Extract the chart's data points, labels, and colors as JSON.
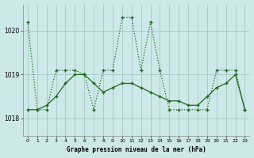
{
  "title": "Graphe pression niveau de la mer (hPa)",
  "bg_color": "#cde8e8",
  "grid_color": "#a8cccc",
  "line_color": "#1a6b1a",
  "xlim": [
    -0.5,
    23.5
  ],
  "ylim": [
    1017.6,
    1020.6
  ],
  "yticks": [
    1018,
    1019,
    1020
  ],
  "xticks": [
    0,
    1,
    2,
    3,
    4,
    5,
    6,
    7,
    8,
    9,
    10,
    11,
    12,
    13,
    14,
    15,
    16,
    17,
    18,
    19,
    20,
    21,
    22,
    23
  ],
  "series_dashed_x": [
    0,
    1,
    2,
    3,
    4,
    5,
    6,
    7,
    8,
    9,
    10,
    11,
    12,
    13,
    14,
    15,
    16,
    17,
    18,
    19,
    20,
    21,
    22,
    23
  ],
  "series_dashed_y": [
    1020.2,
    1018.2,
    1018.2,
    1019.1,
    1019.1,
    1019.1,
    1019.0,
    1018.2,
    1019.1,
    1019.1,
    1020.3,
    1020.3,
    1019.1,
    1020.2,
    1019.1,
    1018.2,
    1018.2,
    1018.2,
    1018.2,
    1018.2,
    1019.1,
    1019.1,
    1019.1,
    1018.2
  ],
  "series_solid_x": [
    0,
    1,
    2,
    3,
    4,
    5,
    6,
    7,
    8,
    9,
    10,
    11,
    12,
    13,
    14,
    15,
    16,
    17,
    18,
    19,
    20,
    21,
    22,
    23
  ],
  "series_solid_y": [
    1018.2,
    1018.2,
    1018.3,
    1018.5,
    1018.8,
    1019.0,
    1019.0,
    1018.8,
    1018.6,
    1018.7,
    1018.8,
    1018.8,
    1018.7,
    1018.6,
    1018.5,
    1018.4,
    1018.4,
    1018.3,
    1018.3,
    1018.5,
    1018.7,
    1018.8,
    1019.0,
    1018.2
  ]
}
